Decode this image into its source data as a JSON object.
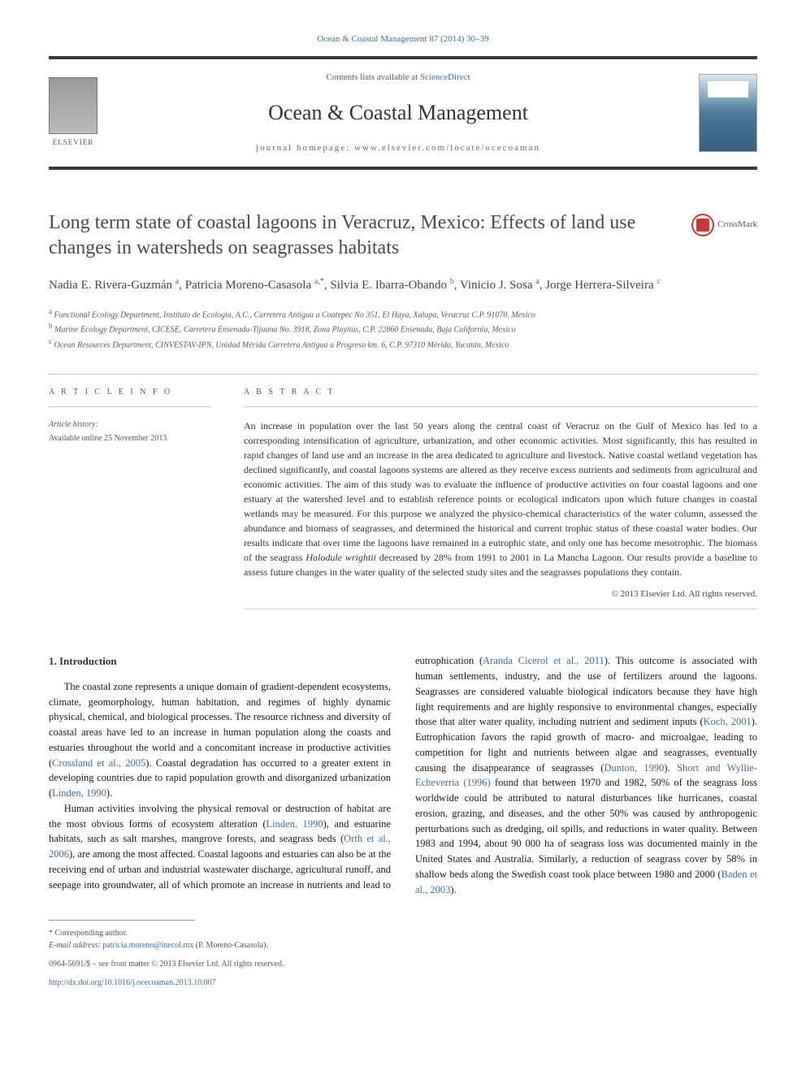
{
  "journal_ref": "Ocean & Coastal Management 87 (2014) 30–39",
  "header": {
    "publisher": "ELSEVIER",
    "sciencedirect_prefix": "Contents lists available at ",
    "sciencedirect_link": "ScienceDirect",
    "journal_name": "Ocean & Coastal Management",
    "homepage_prefix": "journal homepage: ",
    "homepage_url": "www.elsevier.com/locate/ocecoaman"
  },
  "crossmark": "CrossMark",
  "title": "Long term state of coastal lagoons in Veracruz, Mexico: Effects of land use changes in watersheds on seagrasses habitats",
  "authors_html": "Nadia E. Rivera-Guzmán <sup>a</sup>, Patricia Moreno-Casasola <sup>a,*</sup>, Silvia E. Ibarra-Obando <sup>b</sup>, Vinicio J. Sosa <sup>a</sup>, Jorge Herrera-Silveira <sup>c</sup>",
  "affiliations": {
    "a": "Functional Ecology Department, Instituto de Ecología, A.C., Carretera Antigua a Coatepec No 351, El Haya, Xalapa, Veracruz C.P. 91070, Mexico",
    "b": "Marine Ecology Department, CICESE, Carretera Ensenada-Tijuana No. 3918, Zona Playitas, C.P. 22860 Ensenada, Baja California, Mexico",
    "c": "Ocean Resources Department, CINVESTAV-IPN, Unidad Mérida Carretera Antigua a Progreso km. 6, C.P. 97310 Mérida, Yucatán, Mexico"
  },
  "article_info_label": "A R T I C L E   I N F O",
  "abstract_label": "A B S T R A C T",
  "history_label": "Article history:",
  "history_value": "Available online 25 November 2013",
  "abstract": "An increase in population over the last 50 years along the central coast of Veracruz on the Gulf of Mexico has led to a corresponding intensification of agriculture, urbanization, and other economic activities. Most significantly, this has resulted in rapid changes of land use and an increase in the area dedicated to agriculture and livestock. Native coastal wetland vegetation has declined significantly, and coastal lagoons systems are altered as they receive excess nutrients and sediments from agricultural and economic activities. The aim of this study was to evaluate the influence of productive activities on four coastal lagoons and one estuary at the watershed level and to establish reference points or ecological indicators upon which future changes in coastal wetlands may be measured. For this purpose we analyzed the physico-chemical characteristics of the water column, assessed the abundance and biomass of seagrasses, and determined the historical and current trophic status of these coastal water bodies. Our results indicate that over time the lagoons have remained in a eutrophic state, and only one has become mesotrophic. The biomass of the seagrass Halodule wrightii decreased by 28% from 1991 to 2001 in La Mancha Lagoon. Our results provide a baseline to assess future changes in the water quality of the selected study sites and the seagrasses populations they contain.",
  "abstract_copyright": "© 2013 Elsevier Ltd. All rights reserved.",
  "intro_heading": "1. Introduction",
  "paragraphs": [
    "The coastal zone represents a unique domain of gradient-dependent ecosystems, climate, geomorphology, human habitation, and regimes of highly dynamic physical, chemical, and biological processes. The resource richness and diversity of coastal areas have led to an increase in human population along the coasts and estuaries throughout the world and a concomitant increase in productive activities (<span class=\"link\">Crossland et al., 2005</span>). Coastal degradation has occurred to a greater extent in developing countries due to rapid population growth and disorganized urbanization (<span class=\"link\">Linden, 1990</span>).",
    "Human activities involving the physical removal or destruction of habitat are the most obvious forms of ecosystem alteration (<span class=\"link\">Linden, 1990</span>), and estuarine habitats, such as salt marshes, mangrove forests, and seagrass beds (<span class=\"link\">Orth et al., 2006</span>), are among the most affected. Coastal lagoons and estuaries can also be at the receiving end of urban and industrial wastewater discharge, agricultural runoff, and seepage into groundwater, all of which promote an increase in nutrients and lead to eutrophication (<span class=\"link\">Aranda Cicerol et al., 2011</span>). This outcome is associated with human settlements, industry, and the use of fertilizers around the lagoons. Seagrasses are considered valuable biological indicators because they have high light requirements and are highly responsive to environmental changes, especially those that alter water quality, including nutrient and sediment inputs (<span class=\"link\">Koch, 2001</span>). Eutrophication favors the rapid growth of macro- and microalgae, leading to competition for light and nutrients between algae and seagrasses, eventually causing the disappearance of seagrasses (<span class=\"link\">Dunton, 1990</span>). <span class=\"link\">Short and Wyllie-Echeverria (1996)</span> found that between 1970 and 1982, 50% of the seagrass loss worldwide could be attributed to natural disturbances like hurricanes, coastal erosion, grazing, and diseases, and the other 50% was caused by anthropogenic perturbations such as dredging, oil spills, and reductions in water quality. Between 1983 and 1994, about 90 000 ha of seagrass loss was documented mainly in the United States and Australia. Similarly, a reduction of seagrass cover by 58% in shallow beds along the Swedish coast took place between 1980 and 2000 (<span class=\"link\">Baden et al., 2003</span>)."
  ],
  "footnotes": {
    "corresponding": "* Corresponding author.",
    "email_label": "E-mail address: ",
    "email": "patricia.moreno@inecol.mx",
    "email_suffix": " (P. Moreno-Casasola)."
  },
  "footer": {
    "issn": "0964-5691/$ – see front matter © 2013 Elsevier Ltd. All rights reserved.",
    "doi": "http://dx.doi.org/10.1016/j.ocecoaman.2013.10.007"
  }
}
